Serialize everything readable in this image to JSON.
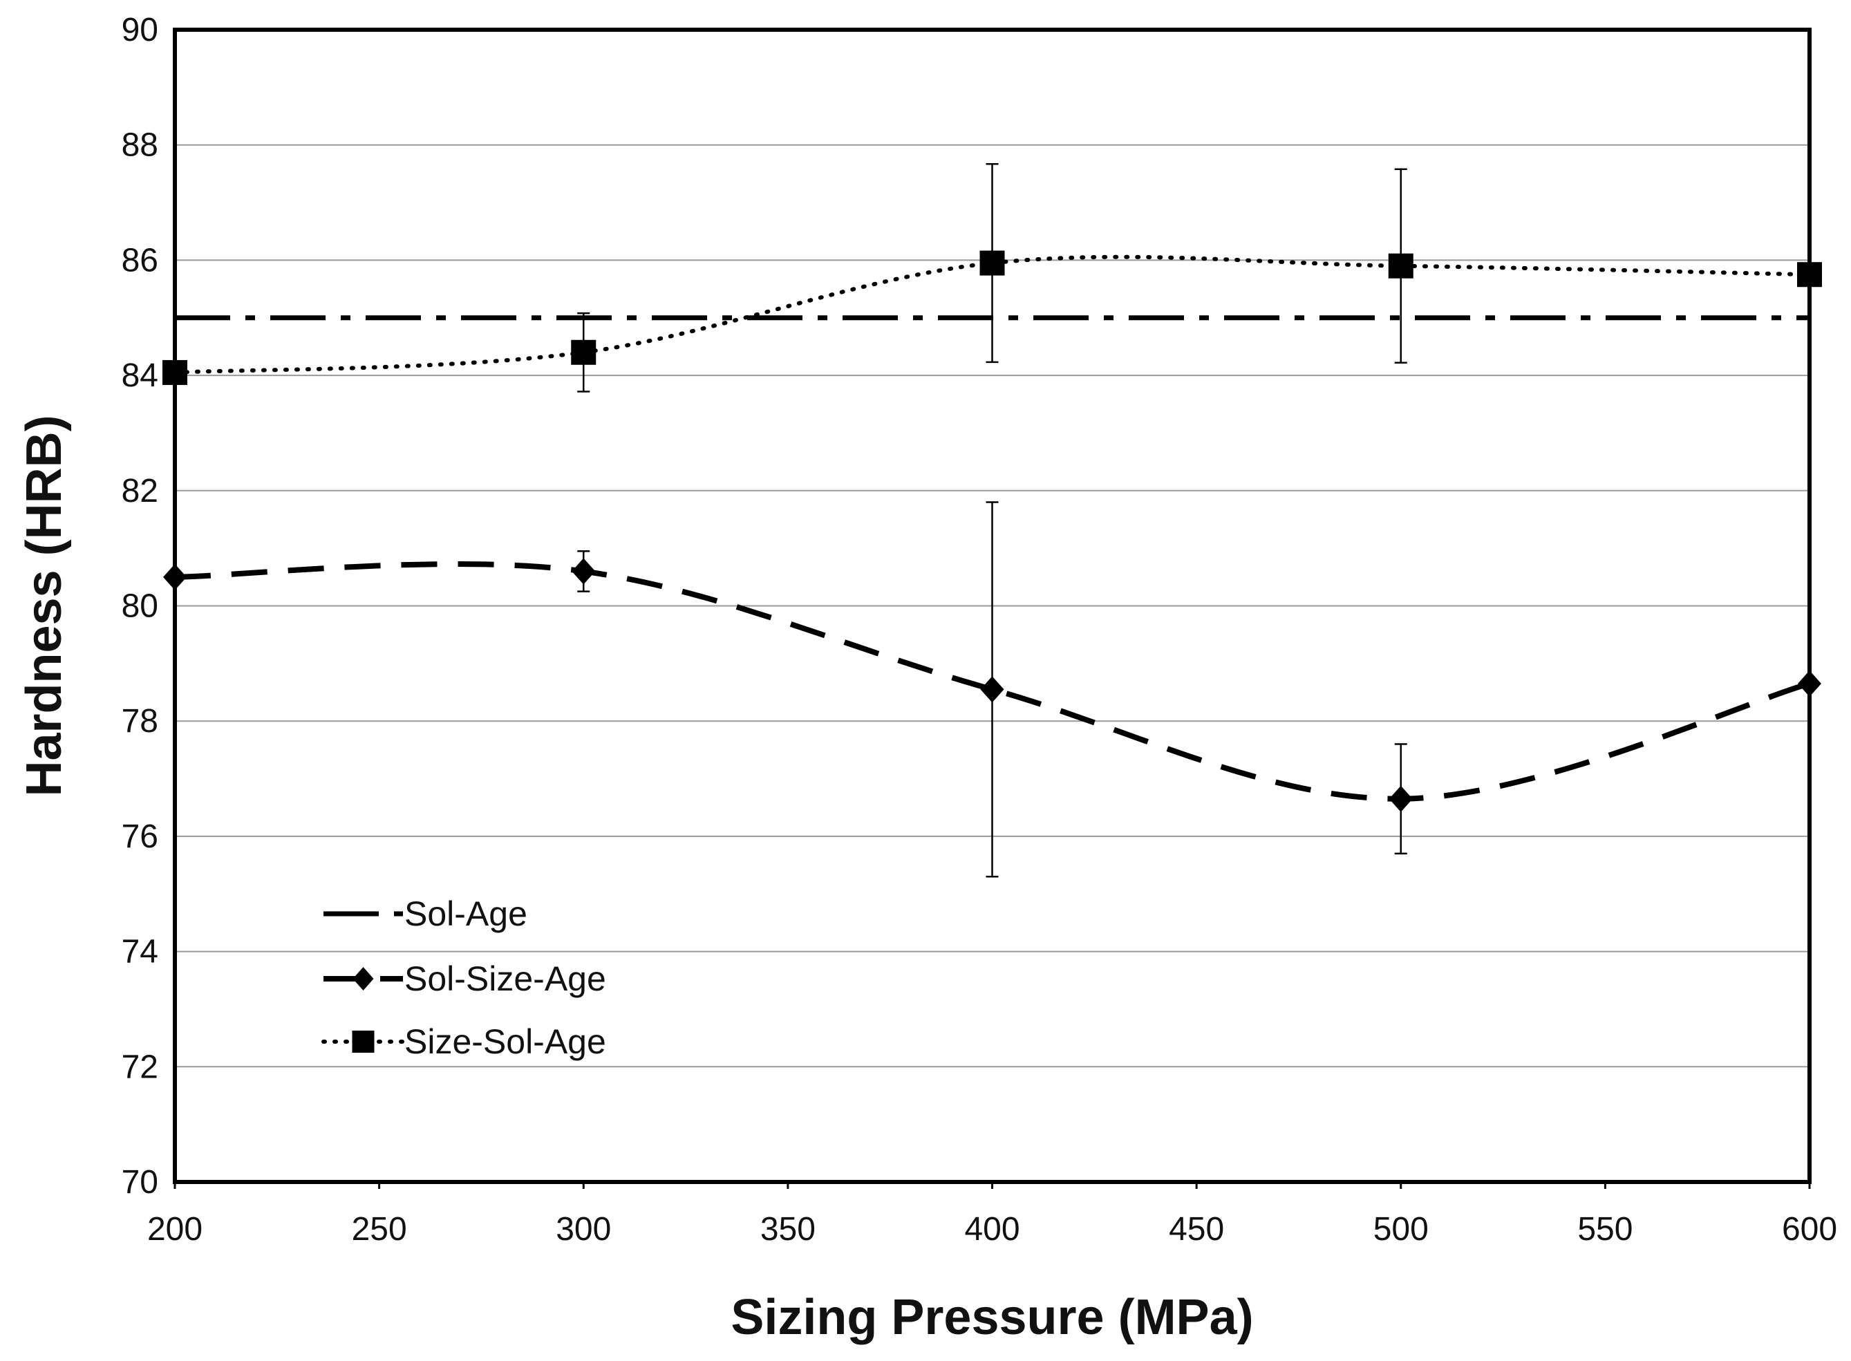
{
  "chart_data": {
    "type": "line",
    "title": "",
    "xlabel": "Sizing Pressure (MPa)",
    "ylabel": "Hardness (HRB)",
    "xlim": [
      200,
      600
    ],
    "ylim": [
      70,
      90
    ],
    "xticks": [
      200,
      250,
      300,
      350,
      400,
      450,
      500,
      550,
      600
    ],
    "yticks": [
      70,
      72,
      74,
      76,
      78,
      80,
      82,
      84,
      86,
      88,
      90
    ],
    "grid": "horizontal",
    "legend_position": "lower-left",
    "series": [
      {
        "name": "Sol-Age",
        "style": "dash-dot",
        "marker": "none",
        "x": [
          200,
          600
        ],
        "y": [
          85.0,
          85.0
        ],
        "errors": []
      },
      {
        "name": "Sol-Size-Age",
        "style": "dashed",
        "marker": "diamond",
        "x": [
          200,
          300,
          400,
          500,
          600
        ],
        "y": [
          80.5,
          80.6,
          78.55,
          76.65,
          78.65
        ],
        "errors": [
          null,
          0.35,
          3.25,
          0.95,
          null
        ]
      },
      {
        "name": "Size-Sol-Age",
        "style": "dotted",
        "marker": "square",
        "x": [
          200,
          300,
          400,
          500,
          600
        ],
        "y": [
          84.05,
          84.4,
          85.95,
          85.9,
          85.75
        ],
        "errors": [
          null,
          0.68,
          1.72,
          1.68,
          null
        ]
      }
    ]
  }
}
